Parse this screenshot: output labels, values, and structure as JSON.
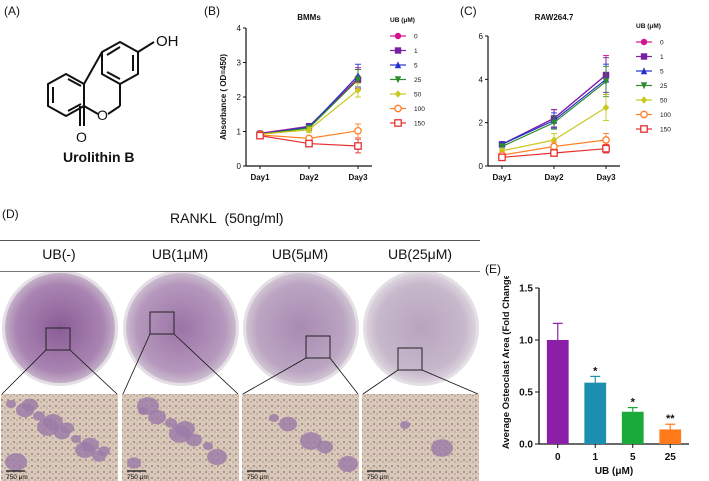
{
  "panel_labels": {
    "a": "(A)",
    "b": "(B)",
    "c": "(C)",
    "d": "(D)",
    "e": "(E)"
  },
  "molecule": {
    "name": "Urolithin B",
    "oh": "OH",
    "o_ring": "O",
    "o_carbonyl": "O"
  },
  "colors": {
    "series": [
      "#d4148f",
      "#7a1fa2",
      "#2233cc",
      "#2e8b2e",
      "#c8c820",
      "#ff7f27",
      "#e83030"
    ],
    "bar": [
      "#8b1fa8",
      "#1c8fb0",
      "#1aaa3a",
      "#ff7a1a"
    ],
    "stain": "#a07aa8"
  },
  "panel_d": {
    "treatment": "RANKL  (50ng/ml)",
    "conditions": [
      "UB(-)",
      "UB(1μM)",
      "UB(5μM)",
      "UB(25μM)"
    ],
    "scale_bar": "750 μm"
  },
  "chart_data": [
    {
      "id": "B",
      "type": "line",
      "title": "BMMs",
      "xlabel": "",
      "ylabel": "Absorbance ( OD=450)",
      "categories": [
        "Day1",
        "Day2",
        "Day3"
      ],
      "ylim": [
        0,
        4
      ],
      "yticks": [
        0,
        1,
        2,
        3,
        4
      ],
      "legend_title": "UB (μM)",
      "series": [
        {
          "name": "0",
          "values": [
            0.95,
            1.15,
            2.55
          ],
          "err": [
            0.06,
            0.08,
            0.3
          ],
          "marker": "circle"
        },
        {
          "name": "1",
          "values": [
            0.93,
            1.15,
            2.5
          ],
          "err": [
            0.06,
            0.08,
            0.3
          ],
          "marker": "square"
        },
        {
          "name": "5",
          "values": [
            0.93,
            1.12,
            2.62
          ],
          "err": [
            0.06,
            0.08,
            0.33
          ],
          "marker": "triangle-up"
        },
        {
          "name": "25",
          "values": [
            0.92,
            1.1,
            2.5
          ],
          "err": [
            0.06,
            0.08,
            0.3
          ],
          "marker": "triangle-down"
        },
        {
          "name": "50",
          "values": [
            0.92,
            1.05,
            2.2
          ],
          "err": [
            0.06,
            0.08,
            0.2
          ],
          "marker": "diamond"
        },
        {
          "name": "100",
          "values": [
            0.9,
            0.8,
            1.02
          ],
          "err": [
            0.05,
            0.06,
            0.2
          ],
          "marker": "circle-open"
        },
        {
          "name": "150",
          "values": [
            0.88,
            0.65,
            0.58
          ],
          "err": [
            0.05,
            0.05,
            0.2
          ],
          "marker": "square-open"
        }
      ]
    },
    {
      "id": "C",
      "type": "line",
      "title": "RAW264.7",
      "xlabel": "",
      "ylabel": "",
      "categories": [
        "Day1",
        "Day2",
        "Day3"
      ],
      "ylim": [
        0,
        6
      ],
      "yticks": [
        0,
        2,
        4,
        6
      ],
      "legend_title": "UB (μM)",
      "series": [
        {
          "name": "0",
          "values": [
            1.0,
            2.2,
            4.2
          ],
          "err": [
            0.1,
            0.4,
            0.9
          ],
          "marker": "circle"
        },
        {
          "name": "1",
          "values": [
            1.0,
            2.2,
            4.2
          ],
          "err": [
            0.1,
            0.4,
            0.8
          ],
          "marker": "square"
        },
        {
          "name": "5",
          "values": [
            1.0,
            2.1,
            4.0
          ],
          "err": [
            0.1,
            0.35,
            0.7
          ],
          "marker": "triangle-up"
        },
        {
          "name": "25",
          "values": [
            0.9,
            2.0,
            3.9
          ],
          "err": [
            0.1,
            0.3,
            0.7
          ],
          "marker": "triangle-down"
        },
        {
          "name": "50",
          "values": [
            0.7,
            1.2,
            2.7
          ],
          "err": [
            0.1,
            0.3,
            0.6
          ],
          "marker": "diamond"
        },
        {
          "name": "100",
          "values": [
            0.5,
            0.9,
            1.2
          ],
          "err": [
            0.08,
            0.2,
            0.3
          ],
          "marker": "circle-open"
        },
        {
          "name": "150",
          "values": [
            0.4,
            0.6,
            0.8
          ],
          "err": [
            0.08,
            0.15,
            0.2
          ],
          "marker": "square-open"
        }
      ]
    },
    {
      "id": "E",
      "type": "bar",
      "title": "",
      "xlabel": "UB (μM)",
      "ylabel": "Average Osteoclast Area (Fold Change)",
      "categories": [
        "0",
        "1",
        "5",
        "25"
      ],
      "values": [
        1.0,
        0.59,
        0.31,
        0.14
      ],
      "err": [
        0.16,
        0.06,
        0.04,
        0.05
      ],
      "significance": [
        "",
        "*",
        "*",
        "**"
      ],
      "ylim": [
        0,
        1.5
      ],
      "yticks": [
        "0.0",
        "0.5",
        "1.0",
        "1.5"
      ]
    }
  ]
}
